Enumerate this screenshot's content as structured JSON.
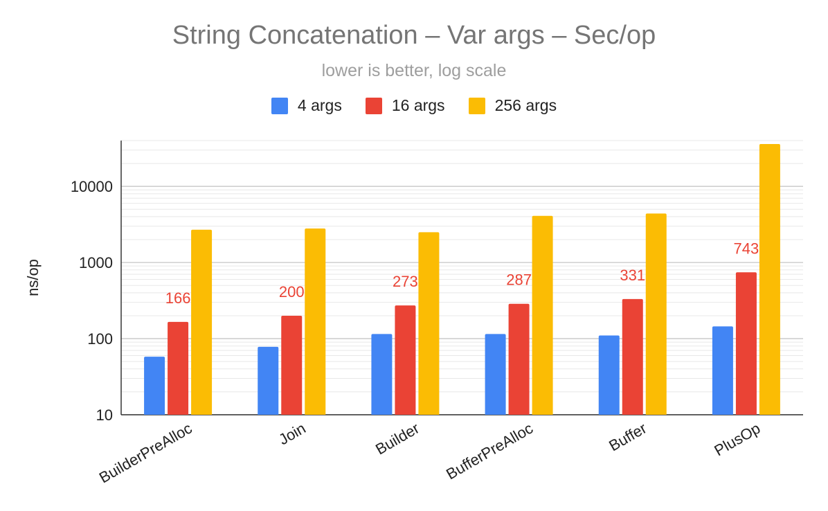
{
  "chart_data": {
    "type": "bar",
    "title": "String Concatenation – Var args – Sec/op",
    "subtitle": "lower is better, log scale",
    "xlabel": "",
    "ylabel": "ns/op",
    "yscale": "log",
    "ylim": [
      10,
      40000
    ],
    "yticks": [
      10,
      100,
      1000,
      10000
    ],
    "ytick_labels": [
      "10",
      "100",
      "1000",
      "10000"
    ],
    "grid": true,
    "legend_position": "top",
    "categories": [
      "BuilderPreAlloc",
      "Join",
      "Builder",
      "BufferPreAlloc",
      "Buffer",
      "PlusOp"
    ],
    "series": [
      {
        "name": "4 args",
        "color": "#4285F4",
        "values": [
          58,
          78,
          115,
          115,
          110,
          145
        ]
      },
      {
        "name": "16 args",
        "color": "#EA4335",
        "values": [
          166,
          200,
          273,
          287,
          331,
          743
        ]
      },
      {
        "name": "256 args",
        "color": "#FBBC04",
        "values": [
          2700,
          2800,
          2500,
          4100,
          4400,
          36000
        ]
      }
    ],
    "data_labels": {
      "series": "16 args",
      "color": "#EA4335",
      "values": [
        "166",
        "200",
        "273",
        "287",
        "331",
        "743"
      ]
    }
  }
}
